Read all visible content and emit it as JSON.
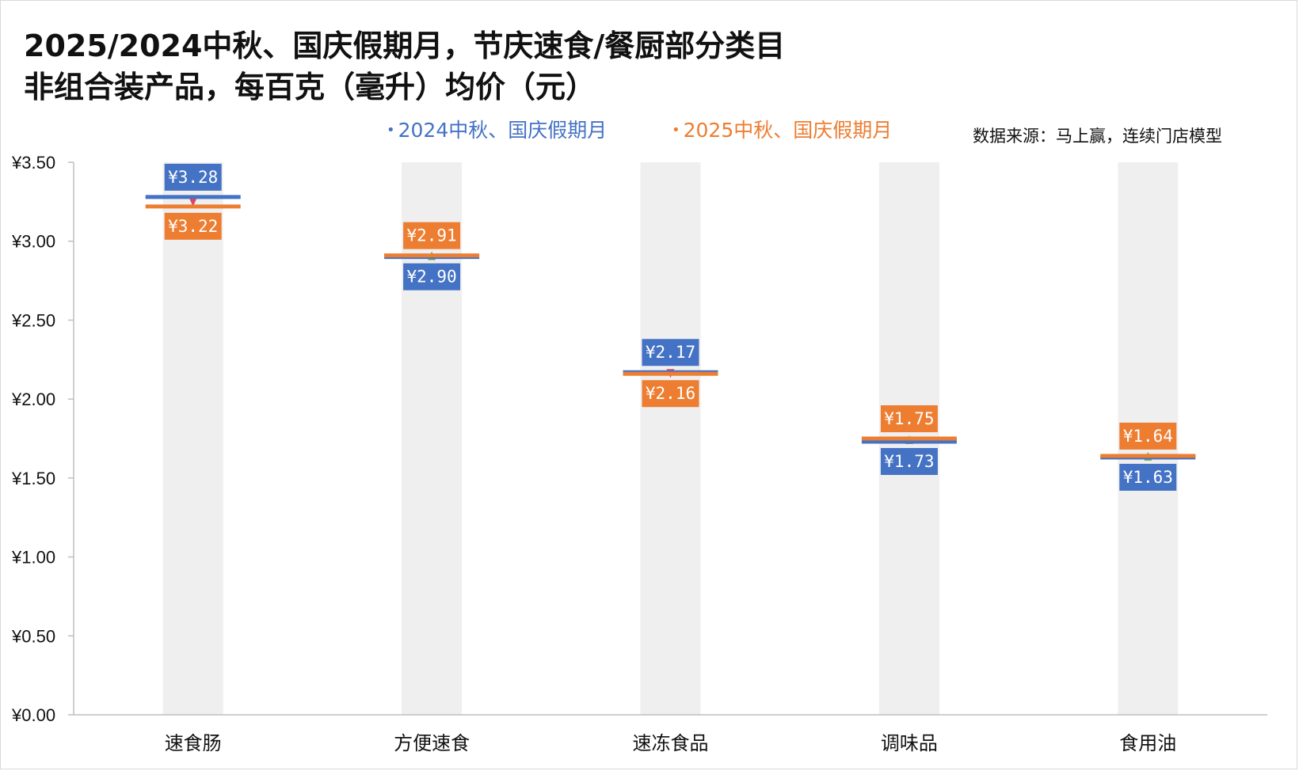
{
  "title_line1": "2025/2024中秋、国庆假期月，节庆速食/餐厨部分类目",
  "title_line2": "非组合装产品，每百克（毫升）均价（元）",
  "source": "数据来源：马上赢，连续门店模型",
  "colors": {
    "series_2024": "#4472c4",
    "series_2025": "#ed7d31",
    "column_bg": "#efefef",
    "up_marker": "#70ad47",
    "down_marker": "#e0475f"
  },
  "chart_data": {
    "type": "bar",
    "title": "2025/2024中秋、国庆假期月，节庆速食/餐厨部分类目 非组合装产品，每百克（毫升）均价（元）",
    "categories": [
      "速食肠",
      "方便速食",
      "速冻食品",
      "调味品",
      "食用油"
    ],
    "series": [
      {
        "name": "2024中秋、国庆假期月",
        "values": [
          3.28,
          2.9,
          2.17,
          1.73,
          1.63
        ],
        "labels": [
          "¥3.28",
          "¥2.90",
          "¥2.17",
          "¥1.73",
          "¥1.63"
        ]
      },
      {
        "name": "2025中秋、国庆假期月",
        "values": [
          3.22,
          2.91,
          2.16,
          1.75,
          1.64
        ],
        "labels": [
          "¥3.22",
          "¥2.91",
          "¥2.16",
          "¥1.75",
          "¥1.64"
        ]
      }
    ],
    "yticks": [
      "¥0.00",
      "¥0.50",
      "¥1.00",
      "¥1.50",
      "¥2.00",
      "¥2.50",
      "¥3.00",
      "¥3.50"
    ],
    "ylim": [
      0,
      3.5
    ],
    "legend_position": "top",
    "grid": false
  }
}
